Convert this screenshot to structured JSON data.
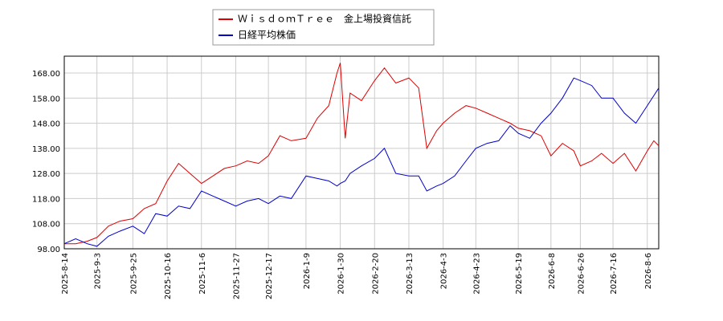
{
  "chart_data": {
    "type": "line",
    "x": [
      "2025-08-14",
      "2025-08-21",
      "2025-08-28",
      "2025-09-03",
      "2025-09-10",
      "2025-09-17",
      "2025-09-25",
      "2025-10-02",
      "2025-10-09",
      "2025-10-16",
      "2025-10-23",
      "2025-10-30",
      "2025-11-06",
      "2025-11-13",
      "2025-11-20",
      "2025-11-27",
      "2025-12-04",
      "2025-12-11",
      "2025-12-17",
      "2025-12-24",
      "2025-12-31",
      "2026-01-09",
      "2026-01-16",
      "2026-01-23",
      "2026-01-28",
      "2026-01-30",
      "2026-02-02",
      "2026-02-05",
      "2026-02-12",
      "2026-02-20",
      "2026-02-26",
      "2026-03-05",
      "2026-03-13",
      "2026-03-19",
      "2026-03-24",
      "2026-03-30",
      "2026-04-03",
      "2026-04-10",
      "2026-04-17",
      "2026-04-23",
      "2026-04-30",
      "2026-05-07",
      "2026-05-14",
      "2026-05-19",
      "2026-05-26",
      "2026-06-02",
      "2026-06-08",
      "2026-06-15",
      "2026-06-22",
      "2026-06-26",
      "2026-07-03",
      "2026-07-09",
      "2026-07-16",
      "2026-07-23",
      "2026-07-30",
      "2026-08-06",
      "2026-08-10",
      "2026-08-13"
    ],
    "series": [
      {
        "name": "ＷｉｓｄｏｍＴｒｅｅ　金上場投資信託",
        "color": "#dd0000",
        "values": [
          100,
          100,
          101,
          102.5,
          107,
          109,
          110,
          114,
          116,
          125,
          132,
          128,
          124,
          127,
          130,
          131,
          133,
          132,
          135,
          143,
          141,
          142,
          150,
          155,
          168,
          172,
          142,
          160,
          157,
          165,
          170,
          164,
          166,
          162,
          138,
          145,
          148,
          152,
          155,
          154,
          152,
          150,
          148,
          146,
          145,
          143,
          135,
          140,
          137,
          131,
          133,
          136,
          132,
          136,
          129,
          137,
          141,
          139
        ]
      },
      {
        "name": "日経平均株価",
        "color": "#0000cc",
        "values": [
          100,
          102,
          100,
          99,
          103,
          105,
          107,
          104,
          112,
          111,
          115,
          114,
          121,
          119,
          117,
          115,
          117,
          118,
          116,
          119,
          118,
          127,
          126,
          125,
          123,
          124,
          125,
          128,
          131,
          134,
          138,
          128,
          127,
          127,
          121,
          123,
          124,
          127,
          133,
          138,
          140,
          141,
          147,
          144,
          142,
          148,
          152,
          158,
          166,
          165,
          163,
          158,
          158,
          152,
          148,
          155,
          159,
          162
        ]
      }
    ],
    "xlim": [
      "2025-08-14",
      "2026-08-13"
    ],
    "xticks": [
      {
        "value": "2025-08-14",
        "label": "2025-8-14"
      },
      {
        "value": "2025-09-03",
        "label": "2025-9-3"
      },
      {
        "value": "2025-09-25",
        "label": "2025-9-25"
      },
      {
        "value": "2025-10-16",
        "label": "2025-10-16"
      },
      {
        "value": "2025-11-06",
        "label": "2025-11-6"
      },
      {
        "value": "2025-11-27",
        "label": "2025-11-27"
      },
      {
        "value": "2025-12-17",
        "label": "2025-12-17"
      },
      {
        "value": "2026-01-09",
        "label": "2026-1-9"
      },
      {
        "value": "2026-01-30",
        "label": "2026-1-30"
      },
      {
        "value": "2026-02-20",
        "label": "2026-2-20"
      },
      {
        "value": "2026-03-13",
        "label": "2026-3-13"
      },
      {
        "value": "2026-04-03",
        "label": "2026-4-3"
      },
      {
        "value": "2026-04-23",
        "label": "2026-4-23"
      },
      {
        "value": "2026-05-19",
        "label": "2026-5-19"
      },
      {
        "value": "2026-06-08",
        "label": "2026-6-8"
      },
      {
        "value": "2026-06-26",
        "label": "2026-6-26"
      },
      {
        "value": "2026-07-16",
        "label": "2026-7-16"
      },
      {
        "value": "2026-08-06",
        "label": "2026-8-6"
      }
    ],
    "ylim": [
      98,
      174.7
    ],
    "yticks": [
      {
        "value": 98,
        "label": "98.00"
      },
      {
        "value": 108,
        "label": "108.00"
      },
      {
        "value": 118,
        "label": "118.00"
      },
      {
        "value": 128,
        "label": "128.00"
      },
      {
        "value": 138,
        "label": "138.00"
      },
      {
        "value": 148,
        "label": "148.00"
      },
      {
        "value": 158,
        "label": "158.00"
      },
      {
        "value": 168,
        "label": "168.00"
      }
    ],
    "grid": true,
    "legend": "top"
  }
}
